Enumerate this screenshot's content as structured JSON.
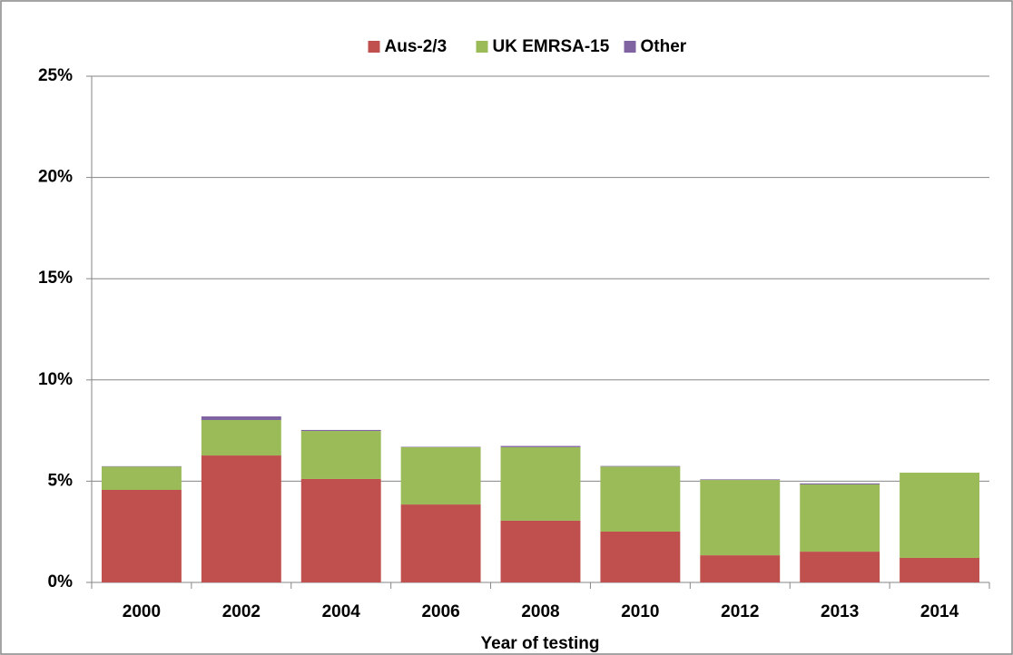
{
  "chart_data": {
    "type": "stacked-bar",
    "x_label": "Year of testing",
    "categories": [
      "2000",
      "2002",
      "2004",
      "2006",
      "2008",
      "2010",
      "2012",
      "2013",
      "2014"
    ],
    "series": [
      {
        "name": "Aus-2/3",
        "color": "#c0504d",
        "values": [
          4.57,
          6.27,
          5.11,
          3.85,
          3.05,
          2.51,
          1.34,
          1.52,
          1.21
        ]
      },
      {
        "name": "UK EMRSA-15",
        "color": "#9bbb59",
        "values": [
          1.15,
          1.75,
          2.37,
          2.83,
          3.63,
          3.21,
          3.72,
          3.32,
          4.21
        ]
      },
      {
        "name": "Other",
        "color": "#8064a2",
        "values": [
          0.02,
          0.18,
          0.05,
          0.02,
          0.06,
          0.03,
          0.03,
          0.05,
          0
        ]
      }
    ],
    "ylim": [
      0,
      25
    ],
    "yticks": [
      {
        "value": 0,
        "label": "0%"
      },
      {
        "value": 5,
        "label": "5%"
      },
      {
        "value": 10,
        "label": "10%"
      },
      {
        "value": 15,
        "label": "15%"
      },
      {
        "value": 20,
        "label": "20%"
      },
      {
        "value": 25,
        "label": "25%"
      }
    ],
    "grid": true,
    "legend": "top"
  }
}
